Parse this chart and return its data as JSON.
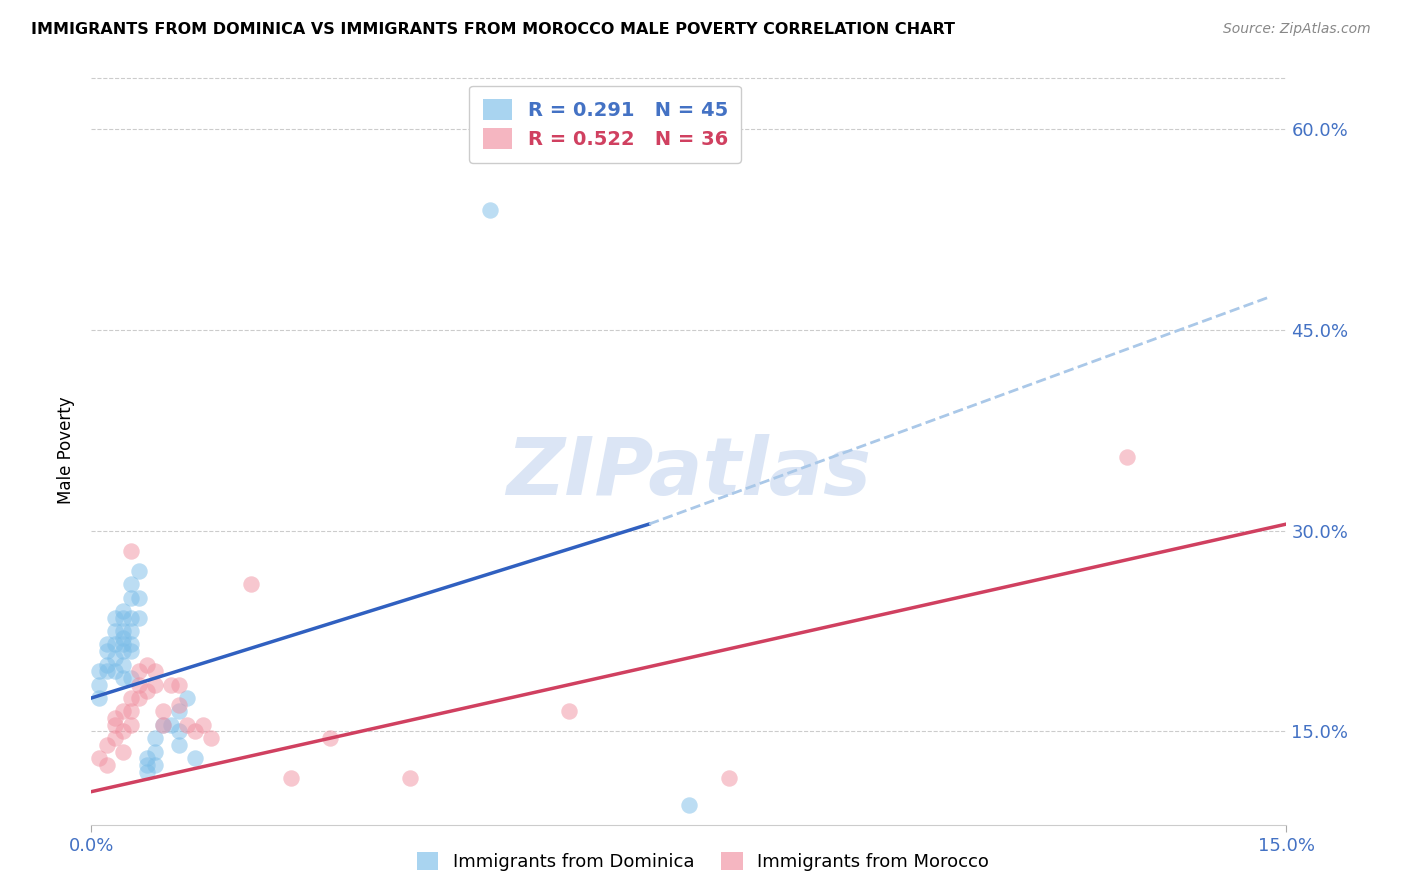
{
  "title": "IMMIGRANTS FROM DOMINICA VS IMMIGRANTS FROM MOROCCO MALE POVERTY CORRELATION CHART",
  "source": "Source: ZipAtlas.com",
  "ylabel": "Male Poverty",
  "ytick_labels": [
    "15.0%",
    "30.0%",
    "45.0%",
    "60.0%"
  ],
  "ytick_values": [
    0.15,
    0.3,
    0.45,
    0.6
  ],
  "xlim": [
    0.0,
    0.15
  ],
  "ylim": [
    0.08,
    0.64
  ],
  "dominica_color": "#7bbde8",
  "morocco_color": "#f090a0",
  "trend_dominica_color": "#3060c0",
  "trend_morocco_color": "#d04060",
  "trend_dashed_color": "#aac8e8",
  "watermark": "ZIPatlas",
  "watermark_color": "#c8d8f0",
  "dominica_label": "Immigrants from Dominica",
  "morocco_label": "Immigrants from Morocco",
  "legend_r_dominica": "R = 0.291",
  "legend_n_dominica": "N = 45",
  "legend_r_morocco": "R = 0.522",
  "legend_n_morocco": "N = 36",
  "dominica_x": [
    0.001,
    0.001,
    0.001,
    0.002,
    0.002,
    0.002,
    0.002,
    0.003,
    0.003,
    0.003,
    0.003,
    0.003,
    0.004,
    0.004,
    0.004,
    0.004,
    0.004,
    0.004,
    0.004,
    0.004,
    0.005,
    0.005,
    0.005,
    0.005,
    0.005,
    0.005,
    0.005,
    0.006,
    0.006,
    0.006,
    0.007,
    0.007,
    0.007,
    0.008,
    0.008,
    0.008,
    0.009,
    0.01,
    0.011,
    0.011,
    0.011,
    0.012,
    0.013,
    0.05,
    0.075
  ],
  "dominica_y": [
    0.195,
    0.185,
    0.175,
    0.215,
    0.21,
    0.2,
    0.195,
    0.235,
    0.225,
    0.215,
    0.205,
    0.195,
    0.24,
    0.235,
    0.225,
    0.22,
    0.215,
    0.21,
    0.2,
    0.19,
    0.26,
    0.25,
    0.235,
    0.225,
    0.215,
    0.21,
    0.19,
    0.27,
    0.25,
    0.235,
    0.13,
    0.125,
    0.12,
    0.145,
    0.135,
    0.125,
    0.155,
    0.155,
    0.165,
    0.15,
    0.14,
    0.175,
    0.13,
    0.54,
    0.095
  ],
  "morocco_x": [
    0.001,
    0.002,
    0.002,
    0.003,
    0.003,
    0.003,
    0.004,
    0.004,
    0.004,
    0.005,
    0.005,
    0.005,
    0.005,
    0.006,
    0.006,
    0.006,
    0.007,
    0.007,
    0.008,
    0.008,
    0.009,
    0.009,
    0.01,
    0.011,
    0.011,
    0.012,
    0.013,
    0.014,
    0.015,
    0.02,
    0.025,
    0.03,
    0.04,
    0.06,
    0.08,
    0.13
  ],
  "morocco_y": [
    0.13,
    0.14,
    0.125,
    0.16,
    0.155,
    0.145,
    0.165,
    0.15,
    0.135,
    0.285,
    0.175,
    0.165,
    0.155,
    0.195,
    0.185,
    0.175,
    0.2,
    0.18,
    0.195,
    0.185,
    0.165,
    0.155,
    0.185,
    0.185,
    0.17,
    0.155,
    0.15,
    0.155,
    0.145,
    0.26,
    0.115,
    0.145,
    0.115,
    0.165,
    0.115,
    0.355
  ],
  "trend_dom_x0": 0.0,
  "trend_dom_y0": 0.175,
  "trend_dom_x1": 0.07,
  "trend_dom_y1": 0.305,
  "trend_dom_dash_x1": 0.148,
  "trend_dom_dash_y1": 0.475,
  "trend_mor_x0": 0.0,
  "trend_mor_y0": 0.105,
  "trend_mor_x1": 0.15,
  "trend_mor_y1": 0.305
}
